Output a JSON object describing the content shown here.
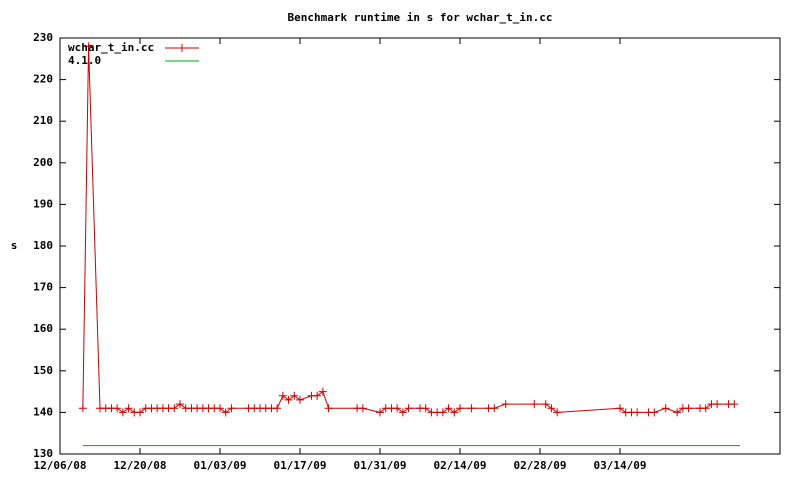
{
  "chart_data": {
    "type": "line",
    "title": "Benchmark runtime in s for wchar_t_in.cc",
    "ylabel": "s",
    "legend": "top-left",
    "xlim": [
      "2008-12-06",
      "2009-04-11"
    ],
    "xticks": [
      {
        "value": "2008-12-06",
        "label": "12/06/08"
      },
      {
        "value": "2008-12-20",
        "label": "12/20/08"
      },
      {
        "value": "2009-01-03",
        "label": "01/03/09"
      },
      {
        "value": "2009-01-17",
        "label": "01/17/09"
      },
      {
        "value": "2009-01-31",
        "label": "01/31/09"
      },
      {
        "value": "2009-02-14",
        "label": "02/14/09"
      },
      {
        "value": "2009-02-28",
        "label": "02/28/09"
      },
      {
        "value": "2009-03-14",
        "label": "03/14/09"
      }
    ],
    "ylim": [
      130,
      230
    ],
    "yticks": [
      130,
      140,
      150,
      160,
      170,
      180,
      190,
      200,
      210,
      220,
      230
    ],
    "series": [
      {
        "name": "wchar_t_in.cc",
        "color": "#cc0000",
        "marker": "+",
        "x": [
          "2008-12-10",
          "2008-12-11",
          "2008-12-13",
          "2008-12-14",
          "2008-12-15",
          "2008-12-16",
          "2008-12-17",
          "2008-12-18",
          "2008-12-19",
          "2008-12-20",
          "2008-12-21",
          "2008-12-22",
          "2008-12-23",
          "2008-12-24",
          "2008-12-25",
          "2008-12-26",
          "2008-12-27",
          "2008-12-28",
          "2008-12-29",
          "2008-12-30",
          "2008-12-31",
          "2009-01-01",
          "2009-01-02",
          "2009-01-03",
          "2009-01-04",
          "2009-01-05",
          "2009-01-08",
          "2009-01-09",
          "2009-01-10",
          "2009-01-11",
          "2009-01-12",
          "2009-01-13",
          "2009-01-14",
          "2009-01-15",
          "2009-01-16",
          "2009-01-17",
          "2009-01-19",
          "2009-01-20",
          "2009-01-21",
          "2009-01-22",
          "2009-01-27",
          "2009-01-28",
          "2009-01-31",
          "2009-02-01",
          "2009-02-02",
          "2009-02-03",
          "2009-02-04",
          "2009-02-05",
          "2009-02-07",
          "2009-02-08",
          "2009-02-09",
          "2009-02-10",
          "2009-02-11",
          "2009-02-12",
          "2009-02-13",
          "2009-02-14",
          "2009-02-16",
          "2009-02-19",
          "2009-02-20",
          "2009-02-22",
          "2009-02-27",
          "2009-03-01",
          "2009-03-02",
          "2009-03-03",
          "2009-03-14",
          "2009-03-15",
          "2009-03-16",
          "2009-03-17",
          "2009-03-19",
          "2009-03-20",
          "2009-03-22",
          "2009-03-24",
          "2009-03-25",
          "2009-03-26",
          "2009-03-28",
          "2009-03-29",
          "2009-03-30",
          "2009-03-31",
          "2009-04-02",
          "2009-04-03"
        ],
        "values": [
          141,
          228,
          141,
          141,
          141,
          141,
          140,
          141,
          140,
          140,
          141,
          141,
          141,
          141,
          141,
          141,
          142,
          141,
          141,
          141,
          141,
          141,
          141,
          141,
          140,
          141,
          141,
          141,
          141,
          141,
          141,
          141,
          144,
          143,
          144,
          143,
          144,
          144,
          145,
          141,
          141,
          141,
          140,
          141,
          141,
          141,
          140,
          141,
          141,
          141,
          140,
          140,
          140,
          141,
          140,
          141,
          141,
          141,
          141,
          142,
          142,
          142,
          141,
          140,
          141,
          140,
          140,
          140,
          140,
          140,
          141,
          140,
          141,
          141,
          141,
          141,
          142,
          142,
          142,
          142
        ]
      },
      {
        "name": "4.1.0",
        "color": "#00aa00",
        "x": [
          "2008-12-10",
          "2009-04-04"
        ],
        "values": [
          132,
          132
        ]
      }
    ]
  }
}
